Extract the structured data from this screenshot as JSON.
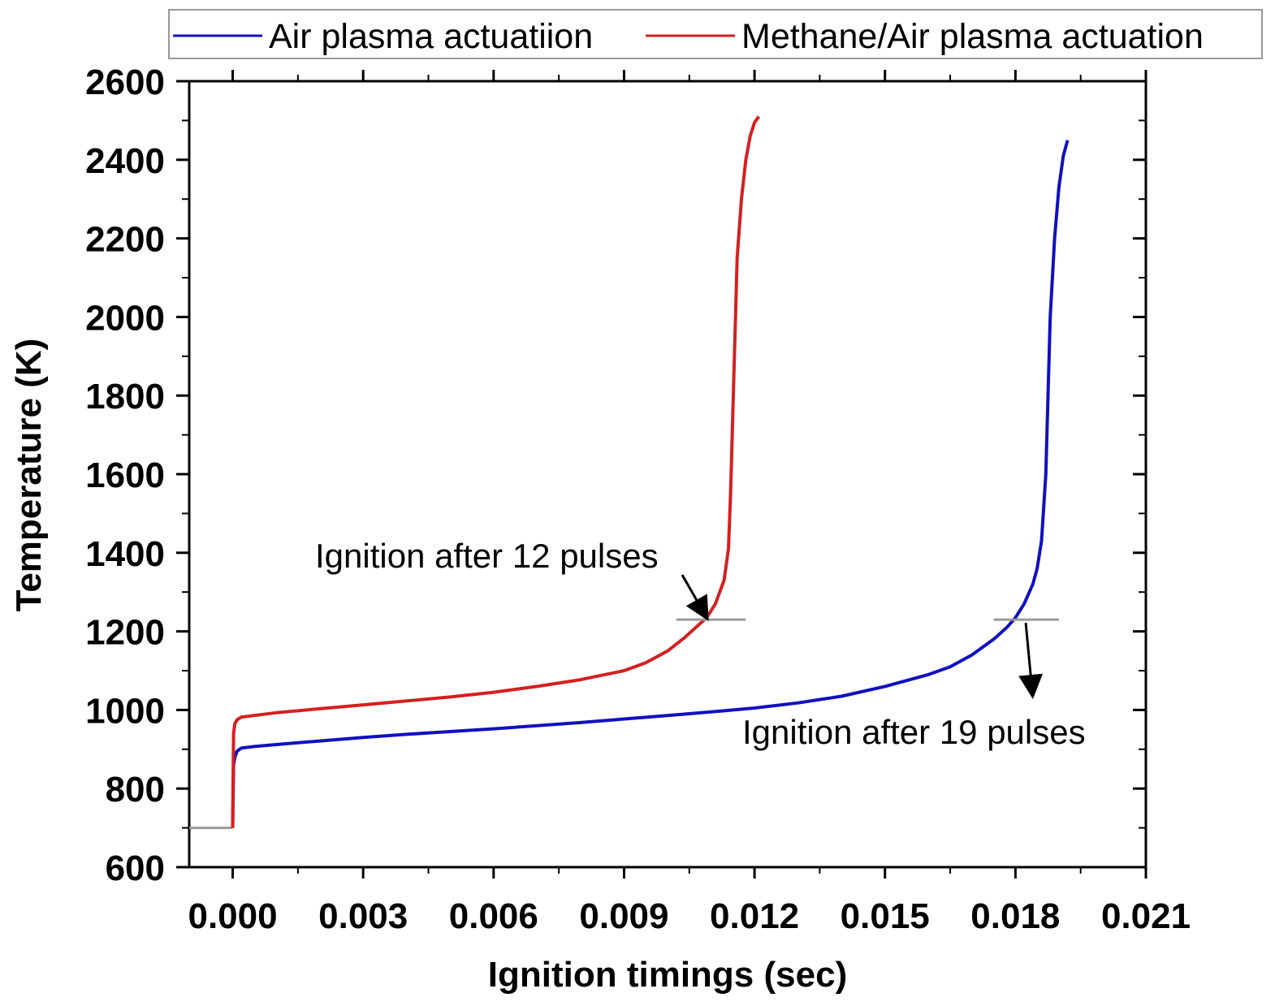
{
  "chart_data": {
    "type": "line",
    "title": "",
    "xlabel": "Ignition timings (sec)",
    "ylabel": "Temperature (K)",
    "xlim": [
      -0.001,
      0.021
    ],
    "ylim": [
      600,
      2600
    ],
    "xticks": [
      0.0,
      0.003,
      0.006,
      0.009,
      0.012,
      0.015,
      0.018,
      0.021
    ],
    "xtick_labels": [
      "0.000",
      "0.003",
      "0.006",
      "0.009",
      "0.012",
      "0.015",
      "0.018",
      "0.021"
    ],
    "yticks": [
      600,
      800,
      1000,
      1200,
      1400,
      1600,
      1800,
      2000,
      2200,
      2400,
      2600
    ],
    "ytick_labels": [
      "600",
      "800",
      "1000",
      "1200",
      "1400",
      "1600",
      "1800",
      "2000",
      "2200",
      "2400",
      "2600"
    ],
    "legend_position": "top",
    "grid": false,
    "series": [
      {
        "name": "Air plasma actuatiion",
        "color": "#1010c0",
        "x": [
          0.0,
          2e-05,
          5e-05,
          0.0001,
          0.0002,
          0.0005,
          0.001,
          0.002,
          0.003,
          0.004,
          0.005,
          0.006,
          0.007,
          0.008,
          0.009,
          0.01,
          0.011,
          0.012,
          0.013,
          0.014,
          0.015,
          0.016,
          0.0165,
          0.017,
          0.0175,
          0.0178,
          0.018,
          0.0182,
          0.0184,
          0.0185,
          0.0186,
          0.0187,
          0.01875,
          0.0188,
          0.0189,
          0.019,
          0.0191,
          0.0192
        ],
        "y": [
          700,
          860,
          880,
          895,
          903,
          907,
          912,
          921,
          930,
          938,
          945,
          952,
          960,
          968,
          977,
          986,
          995,
          1005,
          1018,
          1035,
          1060,
          1090,
          1110,
          1140,
          1180,
          1210,
          1235,
          1270,
          1320,
          1360,
          1430,
          1600,
          1800,
          2000,
          2200,
          2330,
          2410,
          2450
        ]
      },
      {
        "name": "Methane/Air plasma actuation",
        "color": "#d42020",
        "x": [
          0.0,
          2e-05,
          5e-05,
          0.0001,
          0.0002,
          0.0005,
          0.001,
          0.002,
          0.003,
          0.004,
          0.005,
          0.006,
          0.007,
          0.008,
          0.009,
          0.0095,
          0.01,
          0.0104,
          0.0107,
          0.0109,
          0.0111,
          0.0113,
          0.0114,
          0.01145,
          0.0115,
          0.01155,
          0.0116,
          0.0117,
          0.0118,
          0.0119,
          0.012,
          0.0121
        ],
        "y": [
          700,
          940,
          965,
          975,
          982,
          986,
          993,
          1003,
          1013,
          1023,
          1033,
          1045,
          1060,
          1077,
          1100,
          1120,
          1150,
          1185,
          1215,
          1235,
          1270,
          1330,
          1410,
          1550,
          1750,
          1950,
          2150,
          2300,
          2400,
          2460,
          2495,
          2510
        ]
      }
    ],
    "baseline": {
      "x": [
        -0.001,
        0.0
      ],
      "y": [
        700,
        700
      ]
    },
    "annotations": [
      {
        "text": "Ignition after 12 pulses",
        "x": 0.0109,
        "y": 1230,
        "marker_x": [
          0.0102,
          0.0118
        ]
      },
      {
        "text": "Ignition after 19 pulses",
        "x": 0.0182,
        "y": 1230,
        "marker_x": [
          0.0175,
          0.019
        ]
      }
    ]
  }
}
